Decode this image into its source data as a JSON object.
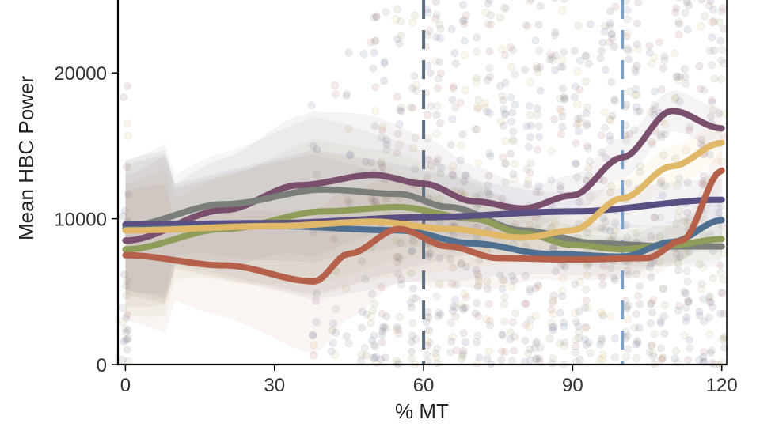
{
  "chart_data": {
    "type": "line",
    "title": "",
    "xlabel": "% MT",
    "ylabel": "Mean HBC Power",
    "xlim": [
      -1.5,
      121
    ],
    "ylim": [
      0,
      25000
    ],
    "xticks": [
      0,
      30,
      60,
      90,
      120
    ],
    "xtick_labels": [
      "0",
      "30",
      "60",
      "90",
      "120"
    ],
    "yticks": [
      0,
      10000,
      20000
    ],
    "ytick_labels": [
      "0",
      "10000",
      "20000"
    ],
    "grid": false,
    "legend": "none",
    "reference_lines": [
      {
        "x": 60,
        "style": "dashed",
        "color": "#5f6f82"
      },
      {
        "x": 100,
        "style": "dashed",
        "color": "#7fa2c4"
      }
    ],
    "series": [
      {
        "color": "#7a4f6e",
        "x": [
          0,
          20,
          35,
          50,
          60,
          70,
          80,
          90,
          100,
          110,
          120
        ],
        "y": [
          8500,
          10600,
          12300,
          13000,
          12400,
          11200,
          10700,
          11600,
          14200,
          17400,
          16200
        ]
      },
      {
        "color": "#7b7f7a",
        "x": [
          0,
          20,
          40,
          55,
          65,
          80,
          95,
          110,
          120
        ],
        "y": [
          9500,
          11000,
          12000,
          11700,
          10800,
          9200,
          8300,
          8100,
          8100
        ]
      },
      {
        "color": "#8f9d5a",
        "x": [
          0,
          20,
          40,
          55,
          70,
          80,
          90,
          100,
          110,
          120
        ],
        "y": [
          7900,
          9300,
          10500,
          10800,
          10000,
          9000,
          8200,
          7900,
          8200,
          8600
        ]
      },
      {
        "color": "#5a4f82",
        "x": [
          0,
          30,
          60,
          90,
          120
        ],
        "y": [
          9600,
          9700,
          10100,
          10500,
          11300
        ]
      },
      {
        "color": "#4f6f90",
        "x": [
          0,
          30,
          55,
          70,
          85,
          100,
          110,
          120
        ],
        "y": [
          9300,
          9500,
          9200,
          8300,
          7600,
          7400,
          8400,
          9900
        ]
      },
      {
        "color": "#e0b868",
        "x": [
          0,
          30,
          50,
          65,
          80,
          90,
          100,
          110,
          120
        ],
        "y": [
          9200,
          9500,
          9800,
          9300,
          8700,
          9200,
          11400,
          13600,
          15200
        ]
      },
      {
        "color": "#b5604a",
        "x": [
          0,
          20,
          38,
          45,
          55,
          65,
          75,
          90,
          105,
          112,
          120
        ],
        "y": [
          7500,
          6800,
          5700,
          7600,
          9300,
          8100,
          7300,
          7200,
          7300,
          8500,
          13300
        ]
      }
    ]
  }
}
